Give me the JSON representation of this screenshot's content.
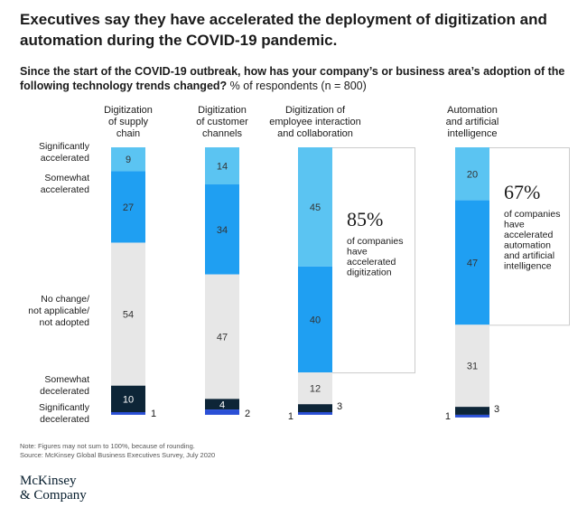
{
  "header": {
    "title": "Executives say they have accelerated the deployment of digitization and automation during the COVID-19 pandemic.",
    "subtitle_bold": "Since the start of the COVID-19 outbreak, how has your company’s or business area’s adoption of the following technology trends changed?",
    "subtitle_unit": "% of respondents (n = 800)"
  },
  "chart_data": {
    "type": "bar",
    "stacked": true,
    "unit": "% of respondents",
    "n": 800,
    "categories": [
      "Digitization of supply chain",
      "Digitization of customer channels",
      "Digitization of employee interaction and collaboration",
      "Automation and artificial intelligence"
    ],
    "category_label_lines": [
      [
        "Digitization",
        "of supply",
        "chain"
      ],
      [
        "Digitization",
        "of customer",
        "channels"
      ],
      [
        "Digitization of",
        "employee interaction",
        "and collaboration"
      ],
      [
        "Automation",
        "and artificial",
        "intelligence"
      ]
    ],
    "series": [
      {
        "name": "Significantly accelerated",
        "label_lines": [
          "Significantly",
          "accelerated"
        ],
        "color": "#5bc4f2",
        "values": [
          9,
          14,
          45,
          20
        ]
      },
      {
        "name": "Somewhat accelerated",
        "label_lines": [
          "Somewhat",
          "accelerated"
        ],
        "color": "#1f9ff2",
        "values": [
          27,
          34,
          40,
          47
        ]
      },
      {
        "name": "No change/not applicable/not adopted",
        "label_lines": [
          "No change/",
          "not applicable/",
          "not adopted"
        ],
        "color": "#e7e7e7",
        "values": [
          54,
          47,
          12,
          31
        ]
      },
      {
        "name": "Somewhat decelerated",
        "label_lines": [
          "Somewhat",
          "decelerated"
        ],
        "color": "#0d2537",
        "values": [
          10,
          4,
          3,
          3
        ]
      },
      {
        "name": "Significantly decelerated",
        "label_lines": [
          "Significantly",
          "decelerated"
        ],
        "color": "#2a4fd6",
        "values": [
          1,
          2,
          1,
          1
        ]
      }
    ],
    "callouts": [
      {
        "category": "Digitization of employee interaction and collaboration",
        "value": "85%",
        "text_lines": [
          "of companies",
          "have",
          "accelerated",
          "digitization"
        ]
      },
      {
        "category": "Automation and artificial intelligence",
        "value": "67%",
        "text_lines": [
          "of companies",
          "have",
          "accelerated",
          "automation",
          "and artificial",
          "intelligence"
        ]
      }
    ],
    "ylim": [
      0,
      100
    ]
  },
  "footer": {
    "note": "Note: Figures may not sum to 100%, because of rounding.",
    "source": "Source: McKinsey Global Business Executives Survey, July 2020",
    "logo_line1": "McKinsey",
    "logo_line2": "& Company"
  },
  "colors": {
    "text": "#1a1a1a",
    "dark_label": "#ffffff",
    "callout_border": "#cccccc"
  }
}
